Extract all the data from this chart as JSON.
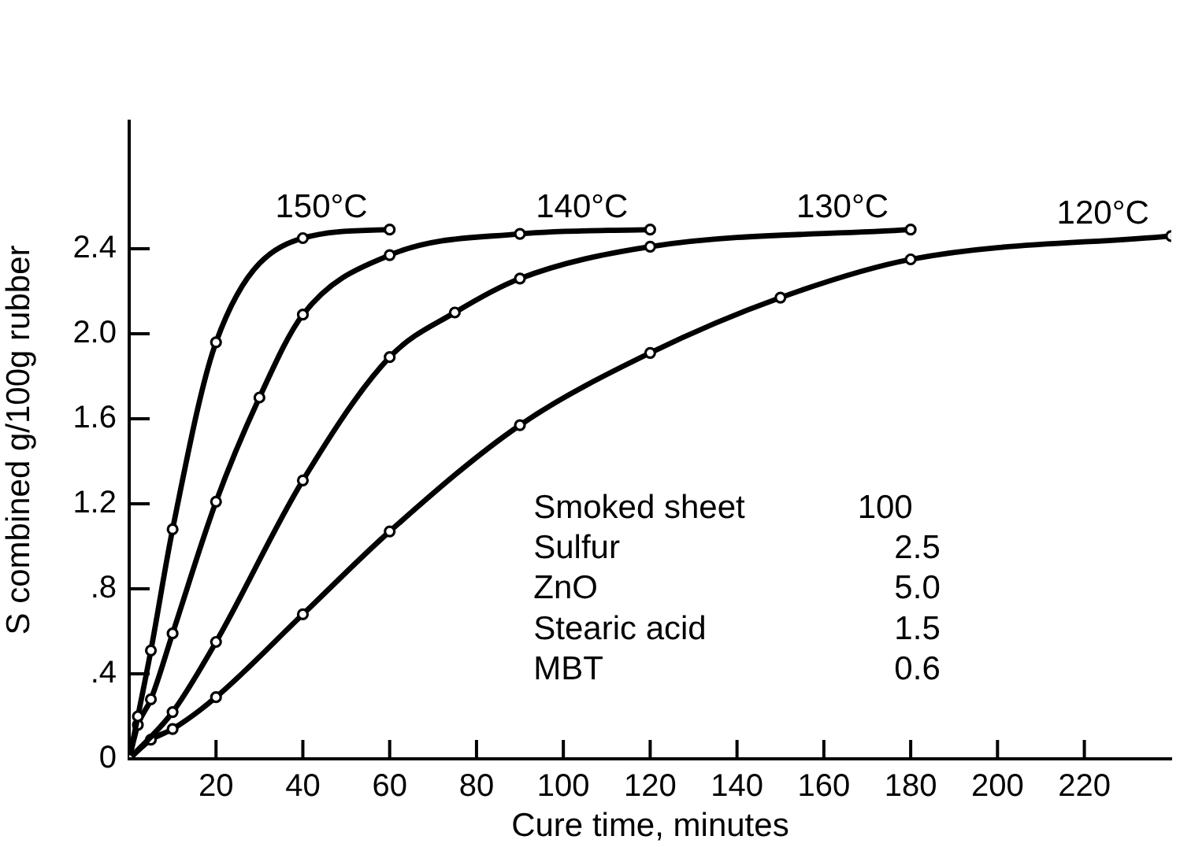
{
  "chart_data": {
    "type": "line",
    "xlabel": "Cure time, minutes",
    "ylabel": "S combined g/100g rubber",
    "xlim": [
      0,
      240
    ],
    "xticks": [
      20,
      40,
      60,
      80,
      100,
      120,
      140,
      160,
      180,
      200,
      220
    ],
    "ylim": [
      0,
      3.0
    ],
    "yticks": [
      0,
      {
        "value": 0.4,
        "label": ".4"
      },
      {
        "value": 0.8,
        "label": ".8"
      },
      1.2,
      1.6,
      {
        "value": 2,
        "label": "2.0"
      },
      2.4
    ],
    "series": [
      {
        "name": "150°C",
        "color": "#000000",
        "x": [
          0,
          2,
          5,
          10,
          20,
          40,
          60
        ],
        "values": [
          0,
          0.2,
          0.51,
          1.08,
          1.96,
          2.45,
          2.49
        ]
      },
      {
        "name": "140°C",
        "color": "#000000",
        "x": [
          0,
          2,
          5,
          10,
          20,
          30,
          40,
          60,
          90,
          120
        ],
        "values": [
          0,
          0.16,
          0.28,
          0.59,
          1.21,
          1.7,
          2.09,
          2.37,
          2.47,
          2.49
        ]
      },
      {
        "name": "130°C",
        "color": "#000000",
        "x": [
          0,
          10,
          20,
          40,
          60,
          75,
          90,
          120,
          180
        ],
        "values": [
          0,
          0.22,
          0.55,
          1.31,
          1.89,
          2.1,
          2.26,
          2.41,
          2.49
        ]
      },
      {
        "name": "120°C",
        "color": "#000000",
        "x": [
          0,
          5,
          10,
          20,
          40,
          60,
          90,
          120,
          150,
          180,
          240
        ],
        "values": [
          0,
          0.09,
          0.14,
          0.29,
          0.68,
          1.07,
          1.57,
          1.91,
          2.17,
          2.35,
          2.46
        ]
      }
    ],
    "annotations": [
      "Smoked sheet",
      "100",
      "Sulfur",
      "2.5",
      "ZnO",
      "5.0",
      "Stearic acid",
      "1.5",
      "MBT",
      "0.6"
    ],
    "legend": false,
    "marker": "circle",
    "line_style": "solid"
  }
}
